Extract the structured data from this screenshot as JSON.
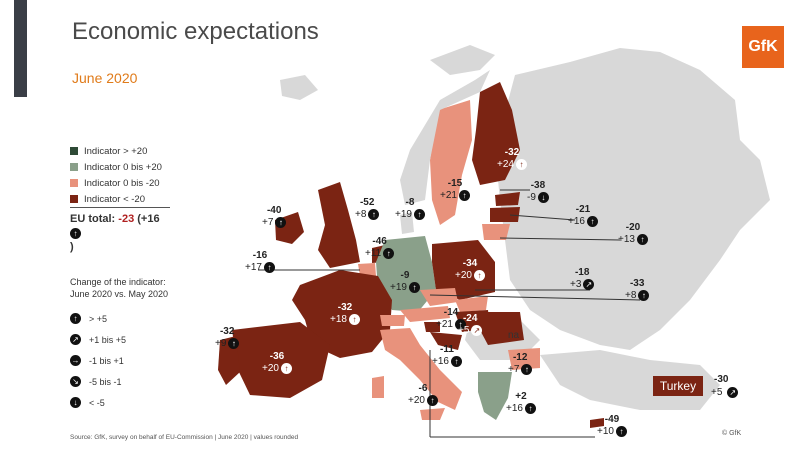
{
  "title": "Economic expectations",
  "subtitle": "June 2020",
  "logo": "GfK",
  "colors": {
    "dark_green": "#2e4a36",
    "light_green": "#8aa08a",
    "salmon": "#e8927c",
    "dark_red": "#7b2413",
    "nodata": "#d8d8d8"
  },
  "legend": [
    {
      "label": "Indicator > +20",
      "color": "#2e4a36"
    },
    {
      "label": "Indicator 0 bis +20",
      "color": "#8aa08a"
    },
    {
      "label": "Indicator 0 bis -20",
      "color": "#e8927c"
    },
    {
      "label": "Indicator < -20",
      "color": "#7b2413"
    }
  ],
  "eu_total": {
    "label": "EU total:",
    "value": "-23",
    "change": "(+16",
    "close": ")"
  },
  "change_title": {
    "line1": "Change of the indicator:",
    "line2": "June 2020 vs. May 2020"
  },
  "change_legend": [
    {
      "icon": "arrow-up-icon",
      "glyph": "↑",
      "label": "> +5"
    },
    {
      "icon": "arrow-up-right-icon",
      "glyph": "↗",
      "label": "+1 bis +5"
    },
    {
      "icon": "arrow-right-icon",
      "glyph": "→",
      "label": "-1 bis +1"
    },
    {
      "icon": "arrow-down-right-icon",
      "glyph": "↘",
      "label": "-5 bis -1"
    },
    {
      "icon": "arrow-down-icon",
      "glyph": "↓",
      "label": "< -5"
    }
  ],
  "source": "Source: GfK, survey on behalf of EU-Commission | June 2020 | values rounded",
  "copyright": "© GfK",
  "turkey": {
    "label": "Turkey",
    "value": "-30",
    "change": "+5"
  },
  "na_label": "na",
  "countries": [
    {
      "value": "-32",
      "change": "+24"
    },
    {
      "value": "-15",
      "change": "+21"
    },
    {
      "value": "-38",
      "change": "-9"
    },
    {
      "value": "-21",
      "change": "+16"
    },
    {
      "value": "-20",
      "change": "+13"
    },
    {
      "value": "-40",
      "change": "+7"
    },
    {
      "value": "-52",
      "change": "+8"
    },
    {
      "value": "-8",
      "change": "+19"
    },
    {
      "value": "-16",
      "change": "+17"
    },
    {
      "value": "-46",
      "change": "+11"
    },
    {
      "value": "-9",
      "change": "+19"
    },
    {
      "value": "-34",
      "change": "+20"
    },
    {
      "value": "-18",
      "change": "+3"
    },
    {
      "value": "-33",
      "change": "+8"
    },
    {
      "value": "-32",
      "change": "+18"
    },
    {
      "value": "-14",
      "change": "+21"
    },
    {
      "value": "-24",
      "change": "+5"
    },
    {
      "value": "-32",
      "change": "+9"
    },
    {
      "value": "-36",
      "change": "+20"
    },
    {
      "value": "-11",
      "change": "+16"
    },
    {
      "value": "-12",
      "change": "+7"
    },
    {
      "value": "-6",
      "change": "+20"
    },
    {
      "value": "+2",
      "change": "+16"
    },
    {
      "value": "-49",
      "change": "+10"
    }
  ]
}
